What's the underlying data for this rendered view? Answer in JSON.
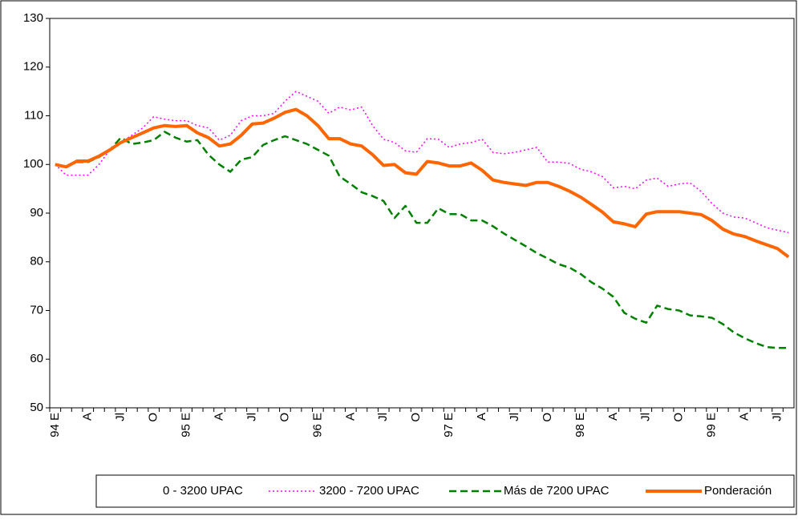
{
  "chart_data": {
    "type": "line",
    "categories": [
      "94 E",
      null,
      null,
      "A",
      null,
      null,
      "Jl",
      null,
      null,
      "O",
      null,
      null,
      "95 E",
      null,
      null,
      "A",
      null,
      null,
      "Jl",
      null,
      null,
      "O",
      null,
      null,
      "96 E",
      null,
      null,
      "A",
      null,
      null,
      "Jl",
      null,
      null,
      "O",
      null,
      null,
      "97 E",
      null,
      null,
      "A",
      null,
      null,
      "Jl",
      null,
      null,
      "O",
      null,
      null,
      "98 E",
      null,
      null,
      "A",
      null,
      null,
      "Jl",
      null,
      null,
      "O",
      null,
      null,
      "99 E",
      null,
      null,
      "A",
      null,
      null,
      "Jl",
      null
    ],
    "series": [
      {
        "name": "0 - 3200 UPAC",
        "color": "#ffffff",
        "dash": "none",
        "width": 1,
        "values": [
          null,
          null,
          null,
          null,
          null,
          null,
          null,
          null,
          null,
          null,
          null,
          null,
          null,
          null,
          null,
          null,
          null,
          null,
          null,
          null,
          null,
          null,
          null,
          null,
          null,
          null,
          null,
          null,
          null,
          null,
          null,
          null,
          null,
          null,
          null,
          null,
          null,
          null,
          null,
          null,
          null,
          null,
          null,
          null,
          null,
          null,
          null,
          null,
          null,
          null,
          null,
          null,
          null,
          null,
          null,
          null,
          null,
          null,
          null,
          null,
          null,
          null,
          null,
          null,
          null,
          null,
          null,
          null
        ]
      },
      {
        "name": "3200 - 7200 UPAC",
        "color": "#ff00ff",
        "dash": "2 3",
        "width": 1.5,
        "values": [
          100,
          97.8,
          97.8,
          97.8,
          100,
          103,
          104.5,
          106,
          107.5,
          109.8,
          109.3,
          109,
          109,
          108,
          107.5,
          105,
          106,
          109,
          110,
          110,
          110.5,
          113,
          115,
          114,
          113,
          110.5,
          111.8,
          111.2,
          111.8,
          108,
          105.2,
          104.5,
          102.8,
          102.5,
          105.3,
          105.2,
          103.5,
          104.2,
          104.5,
          105.2,
          102.5,
          102.2,
          102.5,
          103,
          103.5,
          100.5,
          100.5,
          100.2,
          99,
          98.5,
          97.5,
          95.2,
          95.5,
          95,
          96.8,
          97.2,
          95.5,
          96,
          96.2,
          94.5,
          92,
          90,
          89.2,
          89,
          88,
          87,
          86.5,
          86
        ]
      },
      {
        "name": "Más de 7200 UPAC",
        "color": "#008000",
        "dash": "9 5",
        "width": 2.5,
        "values": [
          100,
          99.5,
          100.5,
          100.5,
          101.5,
          103,
          105.5,
          104.2,
          104.5,
          105,
          106.7,
          105.5,
          104.7,
          105,
          102,
          100,
          98.5,
          101,
          101.5,
          104,
          105,
          105.8,
          105,
          104.2,
          103,
          101.8,
          97.5,
          96,
          94.3,
          93.5,
          92.5,
          89,
          91.5,
          88,
          88,
          91,
          89.8,
          89.8,
          88.5,
          88.5,
          87.3,
          85.8,
          84.5,
          83.2,
          81.8,
          80.7,
          79.5,
          78.8,
          77.5,
          75.8,
          74.5,
          72.8,
          69.5,
          68.3,
          67.5,
          71,
          70.3,
          70,
          69,
          68.8,
          68.5,
          67.2,
          65.5,
          64.3,
          63.3,
          62.5,
          62.3,
          62.3
        ]
      },
      {
        "name": "Ponderación",
        "color": "#ff6600",
        "dash": "none",
        "width": 4,
        "values": [
          100,
          99.5,
          100.7,
          100.7,
          101.7,
          103,
          104.5,
          105.5,
          106.5,
          107.5,
          108,
          107.8,
          108,
          106.5,
          105.5,
          103.8,
          104.2,
          106,
          108.3,
          108.5,
          109.5,
          110.7,
          111.3,
          110,
          108,
          105.3,
          105.3,
          104.2,
          103.8,
          102,
          99.8,
          100,
          98.3,
          98,
          100.6,
          100.3,
          99.7,
          99.7,
          100.3,
          98.8,
          96.8,
          96.3,
          96,
          95.7,
          96.3,
          96.3,
          95.5,
          94.5,
          93.3,
          91.8,
          90.2,
          88.2,
          87.8,
          87.2,
          89.8,
          90.3,
          90.3,
          90.3,
          90,
          89.7,
          88.5,
          86.7,
          85.7,
          85.2,
          84.3,
          83.5,
          82.7,
          81
        ]
      }
    ],
    "ylim": [
      50,
      130
    ],
    "yticks": [
      50,
      60,
      70,
      80,
      90,
      100,
      110,
      120,
      130
    ],
    "grid": false
  }
}
